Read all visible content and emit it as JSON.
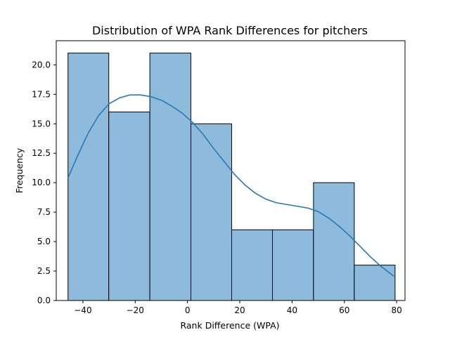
{
  "chart_data": {
    "type": "bar",
    "title": "Distribution of WPA Rank Differences for pitchers",
    "xlabel": "Rank Difference (WPA)",
    "ylabel": "Frequency",
    "xlim": [
      -50.2,
      83.2
    ],
    "ylim": [
      0,
      22.05
    ],
    "xticks": [
      -40,
      -20,
      0,
      20,
      40,
      60,
      80
    ],
    "xtick_labels": [
      "−40",
      "−20",
      "0",
      "20",
      "40",
      "60",
      "80"
    ],
    "yticks": [
      0,
      2.5,
      5,
      7.5,
      10,
      12.5,
      15,
      17.5,
      20
    ],
    "ytick_labels": [
      "0.0",
      "2.5",
      "5.0",
      "7.5",
      "10.0",
      "12.5",
      "15.0",
      "17.5",
      "20.0"
    ],
    "bins": [
      {
        "x0": -45.7,
        "x1": -30.1,
        "count": 21
      },
      {
        "x0": -30.1,
        "x1": -14.4,
        "count": 16
      },
      {
        "x0": -14.4,
        "x1": 1.3,
        "count": 21
      },
      {
        "x0": 1.3,
        "x1": 16.9,
        "count": 15
      },
      {
        "x0": 16.9,
        "x1": 32.5,
        "count": 6
      },
      {
        "x0": 32.5,
        "x1": 48.2,
        "count": 6
      },
      {
        "x0": 48.2,
        "x1": 63.8,
        "count": 10
      },
      {
        "x0": 63.8,
        "x1": 79.4,
        "count": 3
      }
    ],
    "kde": {
      "x": [
        -45.7,
        -42,
        -38,
        -34,
        -30,
        -26,
        -22,
        -18,
        -14,
        -10,
        -6,
        -2,
        2,
        6,
        10,
        14,
        18,
        22,
        26,
        30,
        34,
        38,
        42,
        46,
        50,
        54,
        58,
        62,
        66,
        70,
        74,
        79
      ],
      "y": [
        10.4,
        12.3,
        14.2,
        15.7,
        16.7,
        17.2,
        17.45,
        17.45,
        17.3,
        17.0,
        16.5,
        15.9,
        15.1,
        14.1,
        12.9,
        11.8,
        10.7,
        9.8,
        9.1,
        8.6,
        8.3,
        8.15,
        8.0,
        7.85,
        7.55,
        7.0,
        6.3,
        5.5,
        4.6,
        3.7,
        2.9,
        2.05
      ]
    },
    "legend": "none",
    "grid": false
  }
}
